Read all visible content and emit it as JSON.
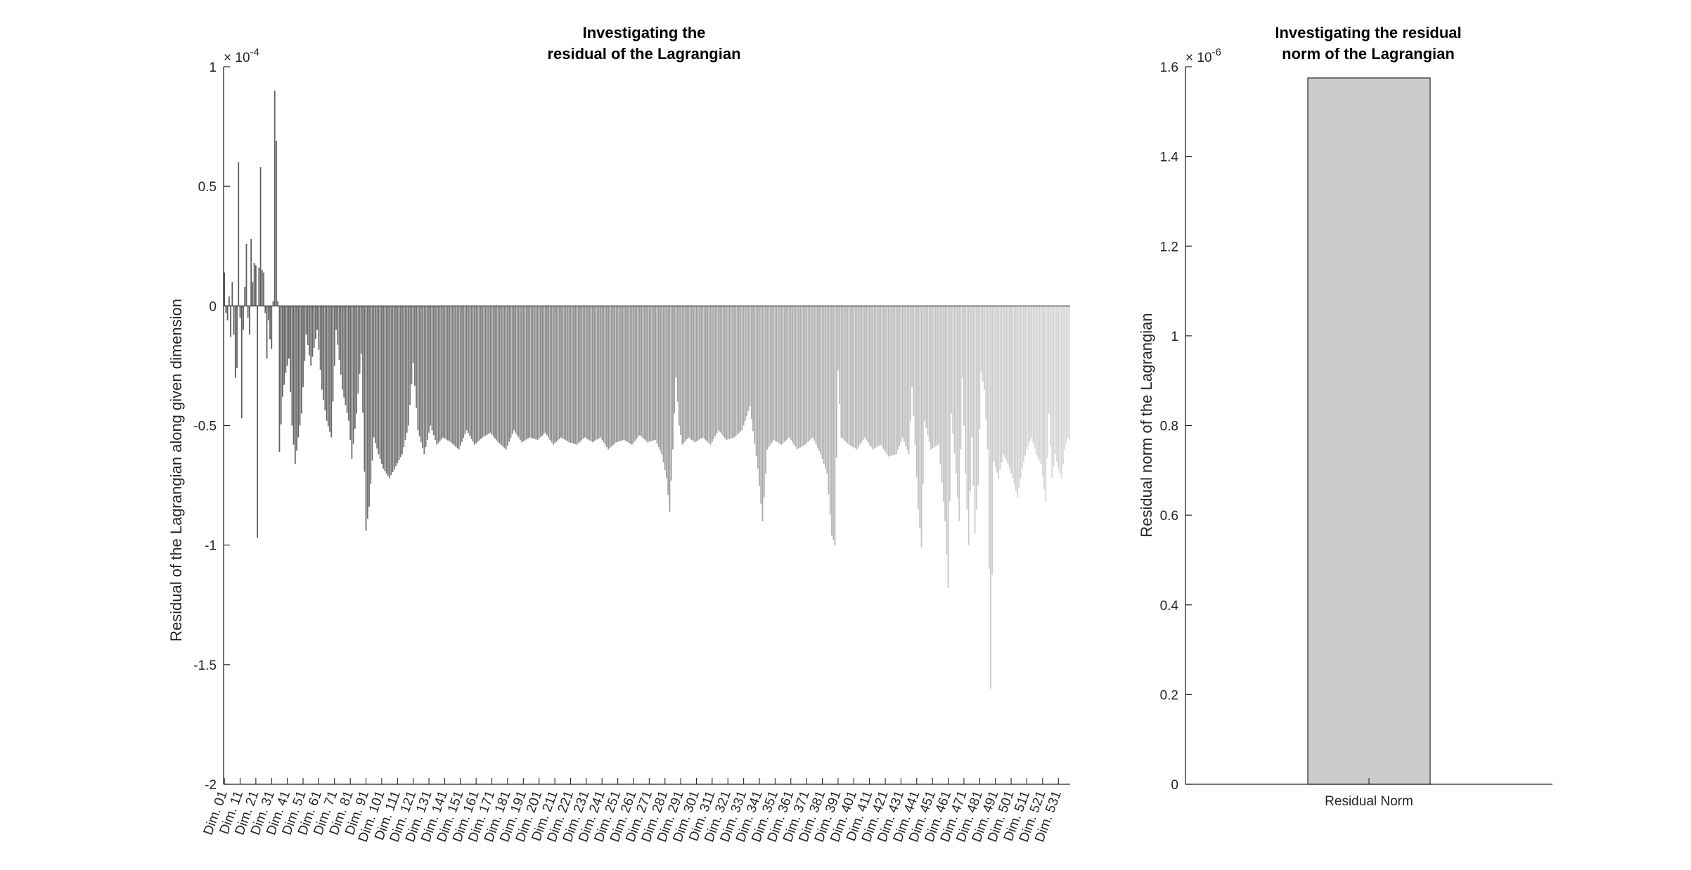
{
  "chart_data": [
    {
      "type": "bar",
      "title": [
        "Investigating the",
        "residual of the Lagrangian"
      ],
      "ylabel": "Residual of the Lagrangian along given dimension",
      "y_exponent": "×10^-4",
      "y_exponent_base": "× 10",
      "y_exponent_power": "-4",
      "ylim": [
        -2,
        1
      ],
      "yticks": [
        -2,
        -1.5,
        -1,
        -0.5,
        0,
        0.5,
        1
      ],
      "ytick_labels": [
        "-2",
        "-1.5",
        "-1",
        "-0.5",
        "0",
        "0.5",
        "1"
      ],
      "num_categories": 538,
      "xtick_labels": [
        "Dim. 01",
        "Dim. 11",
        "Dim. 21",
        "Dim. 31",
        "Dim. 41",
        "Dim. 51",
        "Dim. 61",
        "Dim. 71",
        "Dim. 81",
        "Dim. 91",
        "Dim. 101",
        "Dim. 111",
        "Dim. 121",
        "Dim. 131",
        "Dim. 141",
        "Dim. 151",
        "Dim. 161",
        "Dim. 171",
        "Dim. 181",
        "Dim. 191",
        "Dim. 201",
        "Dim. 211",
        "Dim. 221",
        "Dim. 231",
        "Dim. 241",
        "Dim. 251",
        "Dim. 261",
        "Dim. 271",
        "Dim. 281",
        "Dim. 291",
        "Dim. 301",
        "Dim. 311",
        "Dim. 321",
        "Dim. 331",
        "Dim. 341",
        "Dim. 351",
        "Dim. 361",
        "Dim. 371",
        "Dim. 381",
        "Dim. 391",
        "Dim. 401",
        "Dim. 411",
        "Dim. 421",
        "Dim. 431",
        "Dim. 441",
        "Dim. 451",
        "Dim. 461",
        "Dim. 471",
        "Dim. 481",
        "Dim. 491",
        "Dim. 501",
        "Dim. 511",
        "Dim. 521",
        "Dim. 531"
      ],
      "anchors": [
        [
          1,
          0.14
        ],
        [
          2,
          -0.03
        ],
        [
          3,
          -0.06
        ],
        [
          4,
          0.04
        ],
        [
          5,
          -0.13
        ],
        [
          6,
          0.1
        ],
        [
          7,
          -0.12
        ],
        [
          8,
          -0.3
        ],
        [
          9,
          -0.26
        ],
        [
          10,
          0.6
        ],
        [
          11,
          -0.05
        ],
        [
          12,
          -0.47
        ],
        [
          13,
          -0.1
        ],
        [
          14,
          0.08
        ],
        [
          15,
          0.26
        ],
        [
          16,
          -0.05
        ],
        [
          17,
          -0.12
        ],
        [
          18,
          0.28
        ],
        [
          19,
          0.1
        ],
        [
          20,
          0.18
        ],
        [
          21,
          0.17
        ],
        [
          22,
          -0.97
        ],
        [
          23,
          0.16
        ],
        [
          24,
          0.58
        ],
        [
          25,
          0.15
        ],
        [
          26,
          0.14
        ],
        [
          27,
          -0.03
        ],
        [
          28,
          -0.22
        ],
        [
          29,
          -0.06
        ],
        [
          30,
          -0.14
        ],
        [
          31,
          -0.18
        ],
        [
          32,
          0.02
        ],
        [
          33,
          0.9
        ],
        [
          34,
          0.69
        ],
        [
          35,
          0.02
        ],
        [
          36,
          -0.61
        ],
        [
          38,
          -0.38
        ],
        [
          40,
          -0.28
        ],
        [
          42,
          -0.22
        ],
        [
          44,
          -0.5
        ],
        [
          46,
          -0.66
        ],
        [
          48,
          -0.55
        ],
        [
          50,
          -0.45
        ],
        [
          53,
          -0.12
        ],
        [
          56,
          -0.25
        ],
        [
          60,
          -0.1
        ],
        [
          63,
          -0.35
        ],
        [
          66,
          -0.48
        ],
        [
          69,
          -0.55
        ],
        [
          72,
          -0.1
        ],
        [
          76,
          -0.35
        ],
        [
          80,
          -0.48
        ],
        [
          82,
          -0.64
        ],
        [
          85,
          -0.45
        ],
        [
          88,
          -0.2
        ],
        [
          91,
          -0.94
        ],
        [
          93,
          -0.84
        ],
        [
          96,
          -0.55
        ],
        [
          99,
          -0.62
        ],
        [
          102,
          -0.68
        ],
        [
          106,
          -0.72
        ],
        [
          110,
          -0.67
        ],
        [
          114,
          -0.62
        ],
        [
          118,
          -0.5
        ],
        [
          121,
          -0.24
        ],
        [
          124,
          -0.52
        ],
        [
          128,
          -0.62
        ],
        [
          132,
          -0.5
        ],
        [
          136,
          -0.58
        ],
        [
          140,
          -0.55
        ],
        [
          145,
          -0.57
        ],
        [
          150,
          -0.6
        ],
        [
          155,
          -0.52
        ],
        [
          160,
          -0.58
        ],
        [
          165,
          -0.55
        ],
        [
          170,
          -0.53
        ],
        [
          175,
          -0.57
        ],
        [
          180,
          -0.6
        ],
        [
          185,
          -0.52
        ],
        [
          190,
          -0.57
        ],
        [
          195,
          -0.55
        ],
        [
          200,
          -0.56
        ],
        [
          205,
          -0.53
        ],
        [
          210,
          -0.58
        ],
        [
          215,
          -0.55
        ],
        [
          220,
          -0.57
        ],
        [
          225,
          -0.58
        ],
        [
          230,
          -0.55
        ],
        [
          235,
          -0.57
        ],
        [
          240,
          -0.55
        ],
        [
          245,
          -0.6
        ],
        [
          250,
          -0.57
        ],
        [
          255,
          -0.56
        ],
        [
          260,
          -0.58
        ],
        [
          265,
          -0.54
        ],
        [
          270,
          -0.57
        ],
        [
          275,
          -0.56
        ],
        [
          279,
          -0.62
        ],
        [
          282,
          -0.72
        ],
        [
          284,
          -0.86
        ],
        [
          286,
          -0.6
        ],
        [
          288,
          -0.3
        ],
        [
          290,
          -0.5
        ],
        [
          292,
          -0.58
        ],
        [
          296,
          -0.55
        ],
        [
          300,
          -0.57
        ],
        [
          305,
          -0.55
        ],
        [
          310,
          -0.58
        ],
        [
          315,
          -0.52
        ],
        [
          320,
          -0.56
        ],
        [
          325,
          -0.55
        ],
        [
          330,
          -0.52
        ],
        [
          335,
          -0.42
        ],
        [
          340,
          -0.68
        ],
        [
          343,
          -0.9
        ],
        [
          346,
          -0.6
        ],
        [
          350,
          -0.56
        ],
        [
          355,
          -0.58
        ],
        [
          360,
          -0.55
        ],
        [
          365,
          -0.6
        ],
        [
          370,
          -0.58
        ],
        [
          375,
          -0.55
        ],
        [
          380,
          -0.62
        ],
        [
          384,
          -0.7
        ],
        [
          387,
          -0.96
        ],
        [
          389,
          -1.0
        ],
        [
          391,
          -0.27
        ],
        [
          393,
          -0.55
        ],
        [
          398,
          -0.58
        ],
        [
          403,
          -0.6
        ],
        [
          408,
          -0.55
        ],
        [
          413,
          -0.6
        ],
        [
          418,
          -0.58
        ],
        [
          423,
          -0.63
        ],
        [
          428,
          -0.62
        ],
        [
          432,
          -0.55
        ],
        [
          436,
          -0.62
        ],
        [
          438,
          -0.34
        ],
        [
          440,
          -0.58
        ],
        [
          442,
          -0.85
        ],
        [
          444,
          -1.01
        ],
        [
          446,
          -0.48
        ],
        [
          450,
          -0.6
        ],
        [
          455,
          -0.58
        ],
        [
          459,
          -0.9
        ],
        [
          461,
          -1.18
        ],
        [
          463,
          -0.45
        ],
        [
          466,
          -0.7
        ],
        [
          468,
          -0.9
        ],
        [
          470,
          -0.3
        ],
        [
          472,
          -0.7
        ],
        [
          474,
          -1.0
        ],
        [
          476,
          -0.55
        ],
        [
          478,
          -0.95
        ],
        [
          480,
          -0.75
        ],
        [
          482,
          -0.28
        ],
        [
          484,
          -0.35
        ],
        [
          486,
          -0.6
        ],
        [
          487,
          -1.1
        ],
        [
          488,
          -1.6
        ],
        [
          490,
          -0.65
        ],
        [
          493,
          -0.72
        ],
        [
          496,
          -0.62
        ],
        [
          499,
          -0.66
        ],
        [
          502,
          -0.72
        ],
        [
          505,
          -0.8
        ],
        [
          508,
          -0.68
        ],
        [
          511,
          -0.6
        ],
        [
          514,
          -0.55
        ],
        [
          517,
          -0.62
        ],
        [
          520,
          -0.66
        ],
        [
          523,
          -0.82
        ],
        [
          525,
          -0.45
        ],
        [
          527,
          -0.72
        ],
        [
          529,
          -0.62
        ],
        [
          531,
          -0.68
        ],
        [
          533,
          -0.72
        ],
        [
          535,
          -0.6
        ],
        [
          537,
          -0.55
        ],
        [
          538,
          -0.56
        ]
      ]
    },
    {
      "type": "bar",
      "title": [
        "Investigating the residual",
        "norm of the Lagrangian"
      ],
      "ylabel": "Residual norm of the Lagrangian",
      "y_exponent": "×10^-6",
      "y_exponent_base": "× 10",
      "y_exponent_power": "-6",
      "ylim": [
        0,
        1.6
      ],
      "yticks": [
        0,
        0.2,
        0.4,
        0.6,
        0.8,
        1.0,
        1.2,
        1.4,
        1.6
      ],
      "ytick_labels": [
        "0",
        "0.2",
        "0.4",
        "0.6",
        "0.8",
        "1",
        "1.2",
        "1.4",
        "1.6"
      ],
      "categories": [
        "Residual Norm"
      ],
      "values": [
        1.575
      ],
      "bar_color": "#cccccc"
    }
  ]
}
